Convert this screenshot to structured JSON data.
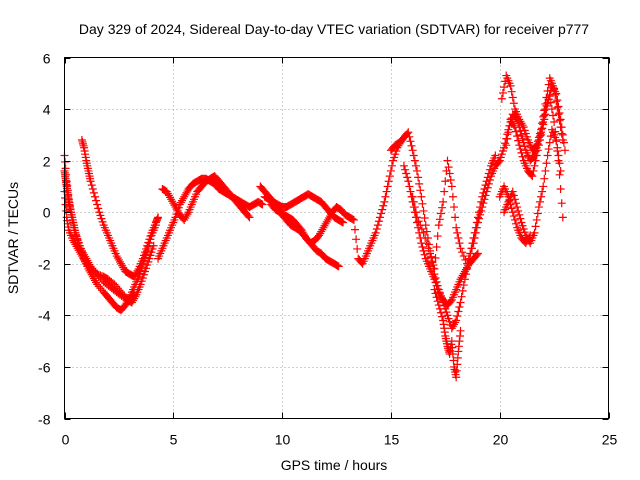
{
  "chart_data": {
    "type": "scatter",
    "title": "Day 329 of 2024, Sidereal Day-to-day VTEC variation (SDTVAR) for receiver p777",
    "xlabel": "GPS time / hours",
    "ylabel": "SDTVAR / TECUs",
    "xlim": [
      0,
      25
    ],
    "ylim": [
      -8,
      6
    ],
    "xticks": [
      0,
      5,
      10,
      15,
      20,
      25
    ],
    "yticks": [
      -8,
      -6,
      -4,
      -2,
      0,
      2,
      4,
      6
    ],
    "grid": true,
    "marker": "+",
    "color": "#ff0000",
    "series": [
      {
        "name": "SDTVAR",
        "x": [
          0.0,
          0.1,
          0.2,
          0.3,
          0.4,
          0.5,
          0.7,
          0.9,
          1.1,
          1.3,
          1.5,
          1.8,
          2.0,
          2.2,
          2.4,
          2.6,
          2.8,
          3.0,
          3.2,
          3.4,
          3.6,
          3.8,
          4.0,
          4.2,
          0.0,
          0.1,
          0.2,
          0.4,
          0.6,
          0.8,
          1.0,
          1.2,
          1.5,
          1.8,
          2.0,
          2.3,
          2.6,
          2.9,
          3.1,
          3.3,
          3.5,
          3.7,
          3.9,
          4.1,
          0.8,
          0.9,
          1.0,
          1.1,
          1.2,
          1.4,
          1.6,
          1.8,
          2.0,
          2.2,
          2.4,
          2.6,
          2.8,
          3.0,
          3.2,
          3.4,
          3.6,
          3.8,
          4.0,
          4.2,
          4.3,
          0.0,
          0.05,
          0.1,
          0.15,
          0.2,
          0.3,
          0.4,
          0.5,
          0.6,
          0.8,
          1.0,
          1.2,
          1.5,
          1.8,
          2.1,
          2.4,
          2.7,
          3.0,
          3.2
        ],
        "y": [
          2.2,
          1.2,
          0.5,
          0.0,
          -0.4,
          -0.8,
          -1.3,
          -1.8,
          -2.2,
          -2.5,
          -2.8,
          -3.1,
          -3.3,
          -3.5,
          -3.7,
          -3.8,
          -3.6,
          -3.3,
          -2.9,
          -2.5,
          -2.0,
          -1.5,
          -0.9,
          -0.5,
          0.8,
          -0.2,
          -0.7,
          -1.1,
          -1.4,
          -1.7,
          -2.0,
          -2.2,
          -2.4,
          -2.5,
          -2.6,
          -2.8,
          -3.1,
          -3.4,
          -3.5,
          -3.2,
          -2.8,
          -2.3,
          -1.8,
          -1.3,
          2.8,
          2.5,
          2.0,
          1.6,
          1.2,
          0.6,
          0.0,
          -0.5,
          -0.9,
          -1.3,
          -1.7,
          -2.0,
          -2.3,
          -2.4,
          -2.5,
          -2.2,
          -1.8,
          -1.3,
          -0.8,
          -0.4,
          -0.2,
          1.6,
          1.3,
          1.0,
          0.7,
          0.4,
          0.0,
          -0.4,
          -0.8,
          -1.1,
          -1.5,
          -1.8,
          -2.1,
          -2.4,
          -2.7,
          -2.9,
          -3.1,
          -3.3,
          -3.4,
          -3.2
        ]
      },
      {
        "name": "SDTVAR",
        "x": [
          4.3,
          4.5,
          4.7,
          4.9,
          5.1,
          5.3,
          5.5,
          5.7,
          5.9,
          6.1,
          6.3,
          6.5,
          6.7,
          6.9,
          7.1,
          7.3,
          7.5,
          7.7,
          7.9,
          8.1,
          8.3,
          8.5,
          8.7,
          8.9,
          9.1,
          4.5,
          4.7,
          4.9,
          5.1,
          5.3,
          5.5,
          5.7,
          5.9,
          6.1,
          6.3,
          6.5,
          6.7,
          6.9,
          7.1,
          7.3,
          7.5,
          7.7,
          7.9,
          8.1,
          8.3,
          8.5
        ],
        "y": [
          -1.8,
          -1.4,
          -1.0,
          -0.6,
          -0.2,
          0.3,
          0.6,
          0.9,
          1.1,
          1.2,
          1.3,
          1.3,
          1.2,
          1.1,
          0.9,
          0.8,
          0.7,
          0.6,
          0.5,
          0.4,
          0.3,
          0.2,
          0.3,
          0.4,
          0.3,
          0.9,
          0.8,
          0.5,
          0.2,
          -0.1,
          -0.3,
          0.0,
          0.4,
          0.8,
          1.0,
          1.2,
          1.3,
          1.4,
          1.2,
          1.0,
          0.8,
          0.6,
          0.4,
          0.2,
          0.0,
          -0.2
        ]
      },
      {
        "name": "SDTVAR",
        "x": [
          9.0,
          9.2,
          9.4,
          9.6,
          9.8,
          10.0,
          10.2,
          10.4,
          10.6,
          10.8,
          11.0,
          11.2,
          11.4,
          11.6,
          11.8,
          12.0,
          12.2,
          12.4,
          12.6,
          12.8,
          9.2,
          9.4,
          9.6,
          9.8,
          10.0,
          10.2,
          10.4,
          10.6,
          10.8,
          11.0,
          11.2,
          11.4,
          11.6,
          11.8,
          12.0,
          12.2,
          12.4,
          12.6,
          9.5,
          9.7,
          9.9,
          10.1,
          10.3,
          10.5,
          10.7,
          10.9,
          11.1,
          11.3,
          11.5,
          11.7,
          11.9,
          12.1,
          12.3,
          12.5,
          12.7,
          12.9,
          13.1,
          13.3,
          13.5,
          13.7,
          13.9,
          14.1,
          14.3,
          14.5,
          14.7,
          14.9,
          15.1,
          15.3,
          15.5
        ],
        "y": [
          1.0,
          0.8,
          0.6,
          0.4,
          0.3,
          0.2,
          0.2,
          0.3,
          0.4,
          0.5,
          0.6,
          0.7,
          0.6,
          0.5,
          0.4,
          0.2,
          0.0,
          -0.2,
          -0.3,
          -0.4,
          0.6,
          0.5,
          0.3,
          0.1,
          -0.1,
          -0.3,
          -0.5,
          -0.6,
          -0.7,
          -0.9,
          -1.1,
          -1.3,
          -1.5,
          -1.6,
          -1.8,
          -1.9,
          -2.0,
          -2.1,
          0.3,
          0.1,
          0.0,
          -0.1,
          -0.2,
          -0.3,
          -0.5,
          -0.7,
          -1.0,
          -1.2,
          -1.1,
          -0.9,
          -0.6,
          -0.3,
          0.0,
          0.2,
          0.1,
          -0.1,
          -0.2,
          -0.3,
          -1.8,
          -2.0,
          -1.6,
          -1.2,
          -0.8,
          -0.2,
          0.4,
          1.2,
          2.0,
          2.5,
          2.8
        ]
      },
      {
        "name": "SDTVAR",
        "x": [
          15.0,
          15.2,
          15.4,
          15.6,
          15.8,
          16.0,
          16.2,
          16.4,
          16.6,
          16.8,
          17.0,
          17.2,
          17.4,
          17.6,
          17.8,
          18.0,
          18.2,
          18.4,
          18.6,
          18.8,
          19.0,
          19.2,
          19.4,
          19.6,
          19.8,
          15.6,
          15.8,
          16.0,
          16.2,
          16.4,
          16.6,
          16.8,
          17.0,
          17.2,
          17.4,
          17.6,
          17.8,
          18.0,
          18.2,
          18.4,
          18.6,
          18.8,
          19.0,
          17.0,
          17.2,
          17.4,
          17.5,
          17.6,
          17.7,
          17.8,
          17.9,
          18.0,
          18.1,
          18.2,
          16.0,
          16.2,
          16.5,
          16.8,
          17.0,
          17.2,
          17.4,
          17.6,
          17.8,
          18.0,
          18.2,
          18.5,
          18.8,
          19.0,
          19.2,
          19.4,
          19.6,
          19.8,
          20.0
        ],
        "y": [
          2.4,
          2.6,
          2.7,
          2.9,
          3.1,
          2.4,
          1.6,
          0.6,
          -0.5,
          -1.5,
          -2.4,
          -3.0,
          -3.5,
          -4.0,
          -4.5,
          -4.2,
          -3.5,
          -2.6,
          -1.8,
          -1.0,
          -0.2,
          0.6,
          1.2,
          1.8,
          2.2,
          1.8,
          1.2,
          0.4,
          -0.4,
          -1.2,
          -1.8,
          -2.2,
          -2.6,
          -3.1,
          -3.4,
          -3.6,
          -3.4,
          -3.0,
          -2.6,
          -2.3,
          -2.0,
          -1.8,
          -1.6,
          -3.0,
          -3.6,
          -4.2,
          -4.8,
          -5.2,
          -5.5,
          -5.0,
          -6.0,
          -6.4,
          -5.4,
          -4.6,
          0.6,
          -0.2,
          -0.8,
          -1.6,
          -2.2,
          -0.5,
          0.4,
          2.0,
          1.0,
          -0.6,
          -1.4,
          -2.0,
          -1.2,
          -0.4,
          0.2,
          0.8,
          1.4,
          1.8,
          2.0
        ]
      },
      {
        "name": "SDTVAR",
        "x": [
          20.0,
          20.2,
          20.4,
          20.6,
          20.8,
          21.0,
          21.2,
          21.4,
          21.6,
          21.8,
          22.0,
          22.2,
          22.4,
          22.6,
          22.8,
          23.0,
          20.1,
          20.3,
          20.5,
          20.7,
          20.9,
          21.1,
          21.3,
          21.5,
          21.7,
          21.9,
          22.1,
          22.3,
          22.5,
          22.7,
          22.9,
          20.2,
          20.4,
          20.6,
          20.8,
          21.0,
          21.2,
          21.4,
          21.6,
          21.8,
          22.0,
          22.2,
          22.4,
          22.6,
          22.8,
          20.3,
          20.5,
          20.7,
          20.9,
          21.1,
          21.3,
          21.5,
          21.7,
          21.9,
          22.1,
          22.3,
          22.5,
          22.7,
          22.9,
          20.0,
          20.2,
          20.4,
          20.6,
          20.8,
          21.0,
          21.2,
          21.4
        ],
        "y": [
          2.0,
          2.5,
          3.2,
          3.8,
          3.6,
          3.0,
          2.4,
          2.0,
          2.2,
          2.8,
          3.4,
          4.2,
          4.9,
          4.6,
          3.6,
          2.4,
          4.4,
          5.3,
          4.9,
          4.0,
          3.6,
          3.3,
          2.8,
          2.4,
          2.6,
          3.2,
          4.2,
          5.2,
          4.8,
          3.8,
          2.8,
          0.0,
          0.4,
          0.8,
          0.2,
          -0.4,
          -0.9,
          -1.2,
          -0.8,
          0.2,
          1.0,
          2.2,
          3.2,
          2.8,
          1.6,
          2.6,
          3.6,
          3.3,
          2.6,
          2.0,
          1.6,
          1.4,
          2.2,
          3.0,
          4.0,
          4.5,
          3.5,
          2.0,
          -0.2,
          0.6,
          1.0,
          0.6,
          0.0,
          -0.6,
          -1.0,
          -1.2,
          -0.9
        ]
      }
    ]
  }
}
